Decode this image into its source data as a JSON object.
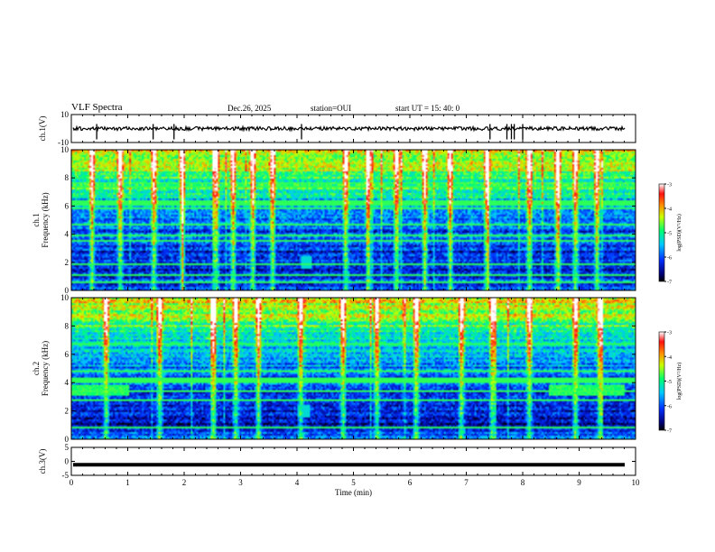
{
  "header": {
    "title": "VLF Spectra",
    "date": "Dec.26, 2025",
    "station": "station=OUI",
    "start_ut": "start  UT =   15: 40: 0"
  },
  "chart_data": [
    {
      "type": "line",
      "name": "ch1-waveform",
      "ylabel": "ch.1(V)",
      "ylim": [
        -10,
        10
      ],
      "y_ticks": [
        "10",
        "-10"
      ],
      "baseline": 0,
      "spikes_min": [
        1.82,
        4.08,
        7.42,
        7.72,
        7.8,
        7.85,
        8.0,
        0.45,
        1.45
      ]
    },
    {
      "type": "heatmap",
      "name": "ch1-spectrogram",
      "ylabel": "ch.1\nFrequency  (kHz)",
      "ylim": [
        0,
        10
      ],
      "y_ticks": [
        "0",
        "2",
        "4",
        "6",
        "8",
        "10"
      ],
      "xlim": [
        0,
        10
      ],
      "colorbar": {
        "label": "log(PSD)(V²/Hz)",
        "range": [
          -7,
          -3
        ],
        "ticks": [
          "-3",
          "-4",
          "-5",
          "-6",
          "-7"
        ]
      },
      "bursts_min": [
        0.35,
        0.85,
        1.45,
        1.95,
        2.55,
        2.85,
        3.2,
        3.55,
        4.85,
        5.25,
        5.75,
        6.25,
        6.7,
        7.35,
        8.1,
        8.6,
        8.92,
        9.3
      ],
      "features": [
        {
          "label": "burst",
          "t_min": 4.15,
          "f_khz": 2.0
        }
      ]
    },
    {
      "type": "heatmap",
      "name": "ch2-spectrogram",
      "ylabel": "ch.2\nFrequency  (kHz)",
      "ylim": [
        0,
        10
      ],
      "y_ticks": [
        "0",
        "2",
        "4",
        "6",
        "8",
        "10"
      ],
      "xlim": [
        0,
        10
      ],
      "colorbar": {
        "label": "log(PSD)(V²/Hz)",
        "range": [
          -7,
          -3
        ],
        "ticks": [
          "-3",
          "-4",
          "-5",
          "-6",
          "-7"
        ]
      },
      "bursts_min": [
        0.6,
        1.55,
        2.5,
        2.9,
        3.3,
        4.05,
        4.8,
        5.4,
        6.1,
        6.9,
        7.45,
        8.1,
        8.92,
        9.35
      ],
      "features": [
        {
          "label": "band",
          "t_start_min": 0.0,
          "t_end_min": 1.0,
          "f_khz": 3.5
        },
        {
          "label": "band",
          "t_start_min": 8.45,
          "t_end_min": 9.8,
          "f_khz": 3.5
        },
        {
          "label": "burst",
          "t_min": 4.1,
          "f_khz": 2.0
        }
      ]
    },
    {
      "type": "line",
      "name": "ch3-waveform",
      "ylabel": "ch.3(V)",
      "ylim": [
        -5,
        5
      ],
      "y_ticks": [
        "5",
        "0",
        "-5"
      ],
      "level": -1.2
    }
  ],
  "xaxis": {
    "label": "Time  (min)",
    "range": [
      0,
      10
    ],
    "ticks": [
      "0",
      "1",
      "2",
      "3",
      "4",
      "5",
      "6",
      "7",
      "8",
      "9",
      "10"
    ]
  }
}
